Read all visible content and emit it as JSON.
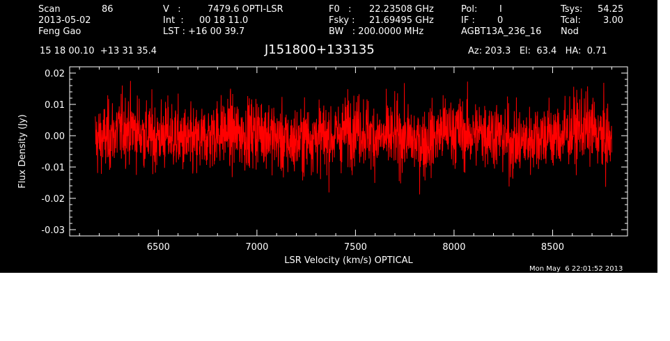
{
  "header": {
    "row1": {
      "scan_label": "Scan",
      "scan_value": "86",
      "v_label": "V   :",
      "v_value": "7479.6 OPTI-LSR",
      "f0_label": "F0   :",
      "f0_value": "22.23508 GHz",
      "pol_label": "Pol:",
      "pol_value": "I",
      "tsys_label": "Tsys:",
      "tsys_value": "54.25"
    },
    "row2": {
      "date": "2013-05-02",
      "int_label": "Int  :",
      "int_value": "00 18 11.0",
      "fsky_label": "Fsky :",
      "fsky_value": "21.69495 GHz",
      "if_label": "IF :",
      "if_value": "0",
      "tcal_label": "Tcal:",
      "tcal_value": "3.00"
    },
    "row3": {
      "observer": "Feng Gao",
      "lst_label": "LST : +16 00 39.7",
      "bw_label": "BW   : 200.0000 MHz",
      "project": "AGBT13A_236_16",
      "mode": "Nod"
    },
    "coords": "15 18 00.10  +13 31 35.4",
    "source": "J151800+133135",
    "pointing": "Az: 203.3   El:  63.4   HA:  0.71",
    "timestamp": "Mon May  6 22:01:52 2013"
  },
  "chart_data": {
    "type": "line",
    "title": "J151800+133135",
    "xlabel": "LSR Velocity (km/s) OPTICAL",
    "ylabel": "Flux Density (Jy)",
    "xlim": [
      6050,
      8880
    ],
    "ylim": [
      -0.032,
      0.022
    ],
    "x_ticks": [
      6500,
      7000,
      7500,
      8000,
      8500
    ],
    "y_ticks": [
      -0.03,
      -0.02,
      -0.01,
      0.0,
      0.01,
      0.02
    ],
    "y_tick_labels": [
      "-0.03",
      "-0.02",
      "-0.01",
      "0.00",
      "0.01",
      "0.02"
    ],
    "grid": false,
    "series": [
      {
        "color": "#ff0000",
        "x_range": [
          6180,
          8800
        ],
        "approx_values": {
          "mean": 0.0,
          "noise_rms": 0.0055,
          "min": -0.0205,
          "max": 0.0185
        }
      }
    ],
    "colors": {
      "background": "#000000",
      "axes": "#ffffff",
      "trace": "#ff0000"
    }
  }
}
